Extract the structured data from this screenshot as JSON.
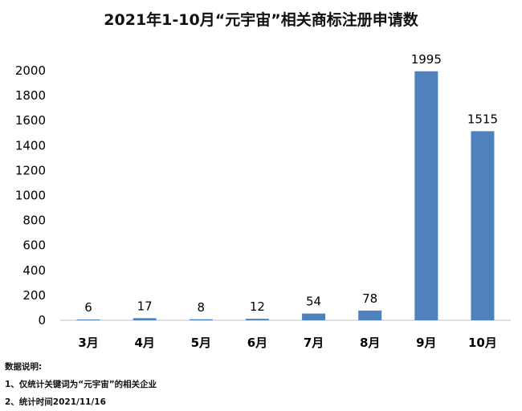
{
  "chart_data": {
    "type": "bar",
    "title": "2021年1-10月“元宇宙”相关商标注册申请数",
    "xlabel": "",
    "ylabel": "",
    "categories": [
      "3月",
      "4月",
      "5月",
      "6月",
      "7月",
      "8月",
      "9月",
      "10月"
    ],
    "values": [
      6,
      17,
      8,
      12,
      54,
      78,
      1995,
      1515
    ],
    "data_labels": [
      "6",
      "17",
      "8",
      "12",
      "54",
      "78",
      "1995",
      "1515"
    ],
    "ylim": [
      0,
      2000
    ],
    "yticks": [
      "0",
      "200",
      "400",
      "600",
      "800",
      "1000",
      "1200",
      "1400",
      "1600",
      "1800",
      "2000"
    ],
    "grid": false,
    "legend": "none",
    "bar_color": "#4f81bd"
  },
  "notes": {
    "heading": "数据说明:",
    "line1": "1、仅统计关键词为“元宇宙”的相关企业",
    "line2": "2、统计时间2021/11/16"
  }
}
